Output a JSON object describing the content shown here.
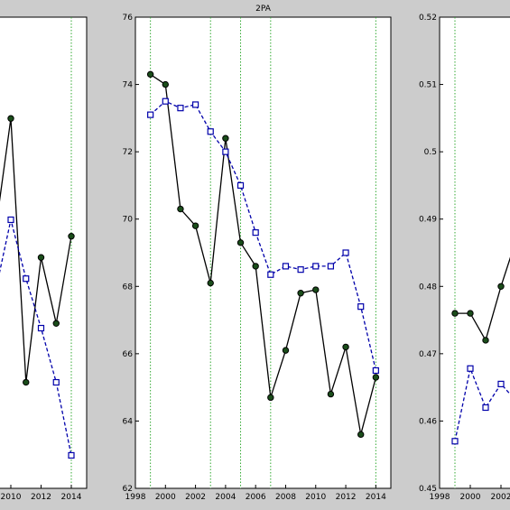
{
  "figure": {
    "background": "#cccccc",
    "plot_background": "#ffffff",
    "series_colors": {
      "solid": "#000000",
      "dashed": "#0000aa",
      "marker_fill": "#1a4d1a",
      "vline": "#33aa33"
    }
  },
  "chart_data": [
    {
      "type": "line",
      "title": "",
      "xlim": [
        1998,
        2015
      ],
      "ylim": [
        null,
        null
      ],
      "x_ticks": [
        "2010",
        "2012",
        "2014"
      ],
      "y_ticks": [],
      "vlines": [
        2014
      ],
      "series": [
        {
          "style": "solid-circle",
          "x": [
            2009,
            2010,
            2011,
            2012,
            2013,
            2014
          ],
          "y": [
            0.55,
            0.785,
            0.225,
            0.49,
            0.35,
            0.535
          ]
        },
        {
          "style": "dashed-square",
          "x": [
            2009,
            2010,
            2011,
            2012,
            2013,
            2014
          ],
          "y": [
            0.42,
            0.57,
            0.445,
            0.34,
            0.225,
            0.07
          ]
        }
      ]
    },
    {
      "type": "line",
      "title": "2PA",
      "xlim": [
        1998,
        2015
      ],
      "ylim": [
        62,
        76
      ],
      "x_ticks": [
        "1998",
        "2000",
        "2002",
        "2004",
        "2006",
        "2008",
        "2010",
        "2012",
        "2014"
      ],
      "y_ticks": [
        "62",
        "64",
        "66",
        "68",
        "70",
        "72",
        "74",
        "76"
      ],
      "vlines": [
        1999,
        2003,
        2005,
        2007,
        2014
      ],
      "series": [
        {
          "style": "solid-circle",
          "x": [
            1999,
            2000,
            2001,
            2002,
            2003,
            2004,
            2005,
            2006,
            2007,
            2008,
            2009,
            2010,
            2011,
            2012,
            2013,
            2014
          ],
          "y": [
            74.3,
            74.0,
            70.3,
            69.8,
            68.1,
            72.4,
            69.3,
            68.6,
            64.7,
            66.1,
            67.8,
            67.9,
            64.8,
            66.2,
            63.6,
            65.3
          ]
        },
        {
          "style": "dashed-square",
          "x": [
            1999,
            2000,
            2001,
            2002,
            2003,
            2004,
            2005,
            2006,
            2007,
            2008,
            2009,
            2010,
            2011,
            2012,
            2013,
            2014
          ],
          "y": [
            73.1,
            73.5,
            73.3,
            73.4,
            72.6,
            72.0,
            71.0,
            69.6,
            68.35,
            68.6,
            68.5,
            68.6,
            68.6,
            69.0,
            67.4,
            65.5
          ]
        }
      ]
    },
    {
      "type": "line",
      "title": "",
      "xlim": [
        1998,
        2015
      ],
      "ylim": [
        0.45,
        0.52
      ],
      "x_ticks": [
        "1998",
        "2000",
        "2002"
      ],
      "y_ticks": [
        "0.45",
        "0.46",
        "0.47",
        "0.48",
        "0.49",
        "0.5",
        "0.51",
        "0.52"
      ],
      "vlines": [
        1999
      ],
      "series": [
        {
          "style": "solid-circle",
          "x": [
            1999,
            2000,
            2001,
            2002,
            2003
          ],
          "y": [
            0.476,
            0.476,
            0.472,
            0.48,
            0.487
          ]
        },
        {
          "style": "dashed-square",
          "x": [
            1999,
            2000,
            2001,
            2002,
            2003
          ],
          "y": [
            0.457,
            0.4678,
            0.462,
            0.4655,
            0.463
          ]
        }
      ]
    }
  ]
}
